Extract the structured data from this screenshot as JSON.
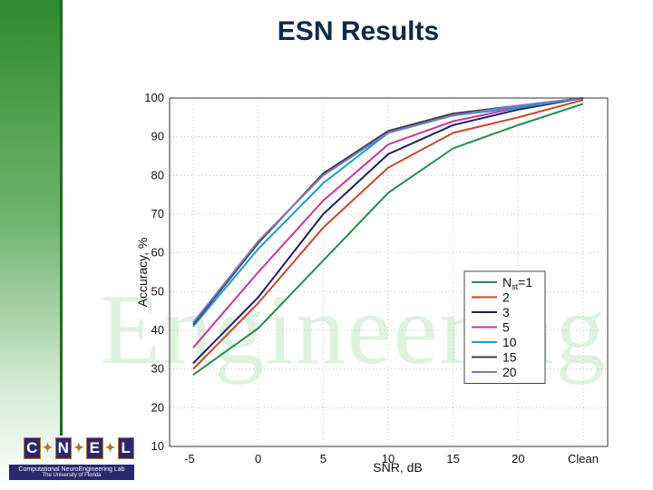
{
  "slide": {
    "title": "ESN Results"
  },
  "logo": {
    "letters": [
      "C",
      "N",
      "E",
      "L"
    ],
    "lab": "Computational NeuroEngineering Lab",
    "university": "The University of Florida"
  },
  "watermark": {
    "text": "Engineering"
  },
  "colors": {
    "sidebar": "#2f8a2f",
    "title": "#0d2a4a"
  },
  "chart_data": {
    "type": "line",
    "title": "",
    "xlabel": "SNR, dB",
    "ylabel": "Accuracy, %",
    "x": [
      "-5",
      "0",
      "5",
      "10",
      "15",
      "20",
      "Clean"
    ],
    "ylim": [
      10,
      100
    ],
    "yticks": [
      10,
      20,
      30,
      40,
      50,
      60,
      70,
      80,
      90,
      100
    ],
    "grid": true,
    "legend_position": "right-middle",
    "legend_prefix": "N",
    "legend_subscript": "st",
    "legend_first_suffix": "=1",
    "series": [
      {
        "name": "1",
        "color": "#1f8f4e",
        "values": [
          28.5,
          40.5,
          58,
          75.5,
          87,
          93,
          98.5
        ]
      },
      {
        "name": "2",
        "color": "#c8442a",
        "values": [
          30,
          47,
          66.5,
          82,
          91,
          95,
          99.5
        ]
      },
      {
        "name": "3",
        "color": "#1f1f6b",
        "values": [
          31.5,
          48.5,
          70,
          85.5,
          93,
          97,
          100
        ]
      },
      {
        "name": "5",
        "color": "#cc3399",
        "values": [
          35.5,
          55,
          73.5,
          88,
          94,
          97.5,
          100
        ]
      },
      {
        "name": "10",
        "color": "#1a9ad6",
        "values": [
          41,
          61,
          78,
          91,
          95.5,
          97.5,
          100
        ]
      },
      {
        "name": "15",
        "color": "#404040",
        "values": [
          41.5,
          62.5,
          80.5,
          91.5,
          96,
          98,
          100
        ]
      },
      {
        "name": "20",
        "color": "#7a7acc",
        "values": [
          42,
          63,
          80,
          91,
          95.5,
          98,
          100
        ]
      }
    ]
  }
}
